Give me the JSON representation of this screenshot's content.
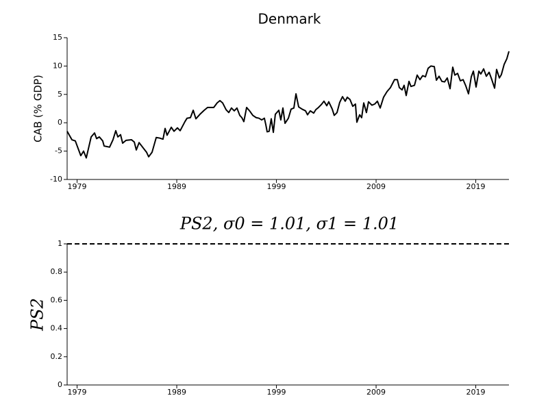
{
  "chart_data": [
    {
      "type": "line",
      "title": "Denmark",
      "ylabel": "CAB (% GDP)",
      "xlim": [
        1978,
        2022.33
      ],
      "xticks": [
        1979,
        1989,
        1999,
        2009,
        2019
      ],
      "ylim": [
        -10,
        15
      ],
      "yticks": [
        -10,
        -5,
        0,
        5,
        10,
        15
      ],
      "grid": false,
      "x": [
        1978.0,
        1978.48,
        1978.82,
        1979.37,
        1979.65,
        1979.92,
        1980.41,
        1980.75,
        1980.96,
        1981.23,
        1981.57,
        1981.71,
        1982.26,
        1982.6,
        1982.88,
        1983.09,
        1983.36,
        1983.57,
        1983.91,
        1984.46,
        1984.74,
        1984.94,
        1985.22,
        1985.7,
        1985.97,
        1986.18,
        1986.52,
        1986.94,
        1987.28,
        1987.62,
        1987.83,
        1988.03,
        1988.45,
        1988.72,
        1989.07,
        1989.34,
        1989.82,
        1990.03,
        1990.37,
        1990.65,
        1990.92,
        1991.33,
        1991.75,
        1992.09,
        1992.71,
        1993.05,
        1993.33,
        1993.6,
        1993.95,
        1994.22,
        1994.49,
        1994.77,
        1995.04,
        1995.32,
        1995.53,
        1995.73,
        1996.01,
        1996.35,
        1996.63,
        1996.97,
        1997.24,
        1997.52,
        1997.79,
        1997.93,
        1998.07,
        1998.27,
        1998.48,
        1998.69,
        1998.89,
        1999.24,
        1999.44,
        1999.65,
        1999.86,
        2000.2,
        2000.47,
        2000.75,
        2000.96,
        2001.23,
        2001.57,
        2001.92,
        2002.12,
        2002.4,
        2002.74,
        2002.95,
        2003.22,
        2003.5,
        2003.77,
        2004.05,
        2004.25,
        2004.6,
        2004.8,
        2005.08,
        2005.35,
        2005.63,
        2005.9,
        2006.11,
        2006.38,
        2006.66,
        2006.93,
        2007.07,
        2007.35,
        2007.55,
        2007.76,
        2008.03,
        2008.24,
        2008.58,
        2008.86,
        2009.13,
        2009.41,
        2009.75,
        2010.1,
        2010.44,
        2010.85,
        2011.13,
        2011.33,
        2011.61,
        2011.81,
        2012.02,
        2012.3,
        2012.5,
        2012.85,
        2013.12,
        2013.4,
        2013.67,
        2013.95,
        2014.22,
        2014.5,
        2014.84,
        2015.05,
        2015.32,
        2015.6,
        2015.87,
        2016.14,
        2016.42,
        2016.69,
        2016.9,
        2017.18,
        2017.45,
        2017.73,
        2018.0,
        2018.27,
        2018.55,
        2018.76,
        2019.03,
        2019.31,
        2019.51,
        2019.79,
        2020.06,
        2020.34,
        2020.61,
        2020.89,
        2021.09,
        2021.37,
        2021.57,
        2021.85,
        2022.12,
        2022.33
      ],
      "series": [
        {
          "name": "CAB",
          "color": "#000000",
          "linestyle": "solid",
          "values": [
            -1.5,
            -3,
            -3.2,
            -5.8,
            -5,
            -6.2,
            -2.5,
            -1.8,
            -2.8,
            -2.5,
            -3.2,
            -4.1,
            -4.3,
            -3,
            -1.4,
            -2.5,
            -2.1,
            -3.6,
            -3.1,
            -3,
            -3.4,
            -4.8,
            -3.5,
            -4.6,
            -5.2,
            -6,
            -5.2,
            -2.6,
            -2.7,
            -2.9,
            -1,
            -2.2,
            -0.8,
            -1.5,
            -0.9,
            -1.4,
            0.2,
            0.8,
            0.9,
            2.2,
            0.7,
            1.5,
            2.2,
            2.7,
            2.7,
            3.5,
            3.9,
            3.5,
            2.3,
            1.8,
            2.6,
            2.1,
            2.6,
            1.3,
            0.9,
            0.2,
            2.7,
            2,
            1.3,
            0.9,
            0.8,
            0.5,
            0.8,
            -0.3,
            -1.6,
            -1.5,
            0.7,
            -1.7,
            1.5,
            2.2,
            0.5,
            2.6,
            -0.1,
            0.8,
            2.4,
            2.6,
            5.1,
            2.8,
            2.4,
            2.1,
            1.4,
            2.1,
            1.7,
            2.3,
            2.7,
            3.2,
            3.8,
            3,
            3.7,
            2.4,
            1.3,
            1.8,
            3.6,
            4.6,
            3.8,
            4.5,
            4.1,
            2.9,
            3.3,
            0.1,
            1.4,
            0.9,
            3.5,
            1.8,
            3.7,
            3.1,
            3.3,
            3.8,
            2.6,
            4.5,
            5.5,
            6.2,
            7.6,
            7.6,
            6.2,
            5.8,
            6.6,
            4.8,
            7.3,
            6.4,
            6.6,
            8.4,
            7.6,
            8.3,
            8.1,
            9.6,
            10,
            9.9,
            7.5,
            8.2,
            7.3,
            7.2,
            7.9,
            6,
            9.8,
            8.4,
            8.7,
            7.4,
            7.6,
            6.5,
            5.1,
            8.1,
            9.1,
            6.3,
            9.1,
            8.6,
            9.5,
            8.2,
            8.9,
            7.6,
            6.1,
            9.4,
            7.9,
            8.5,
            10.3,
            11.3,
            12.6
          ]
        }
      ]
    },
    {
      "type": "line",
      "title": "PS2, σ0 = 1.01, σ1 = 1.01",
      "ylabel": "PS2",
      "xlim": [
        1978,
        2022.33
      ],
      "xticks": [
        1979,
        1989,
        1999,
        2009,
        2019
      ],
      "ylim": [
        0,
        1
      ],
      "yticks": [
        0,
        0.2,
        0.4,
        0.6,
        0.8,
        1
      ],
      "grid": false,
      "x": [
        1978,
        2022.33
      ],
      "series": [
        {
          "name": "PS2",
          "color": "#000000",
          "linestyle": "dashed",
          "values": [
            1,
            1
          ]
        }
      ]
    }
  ]
}
